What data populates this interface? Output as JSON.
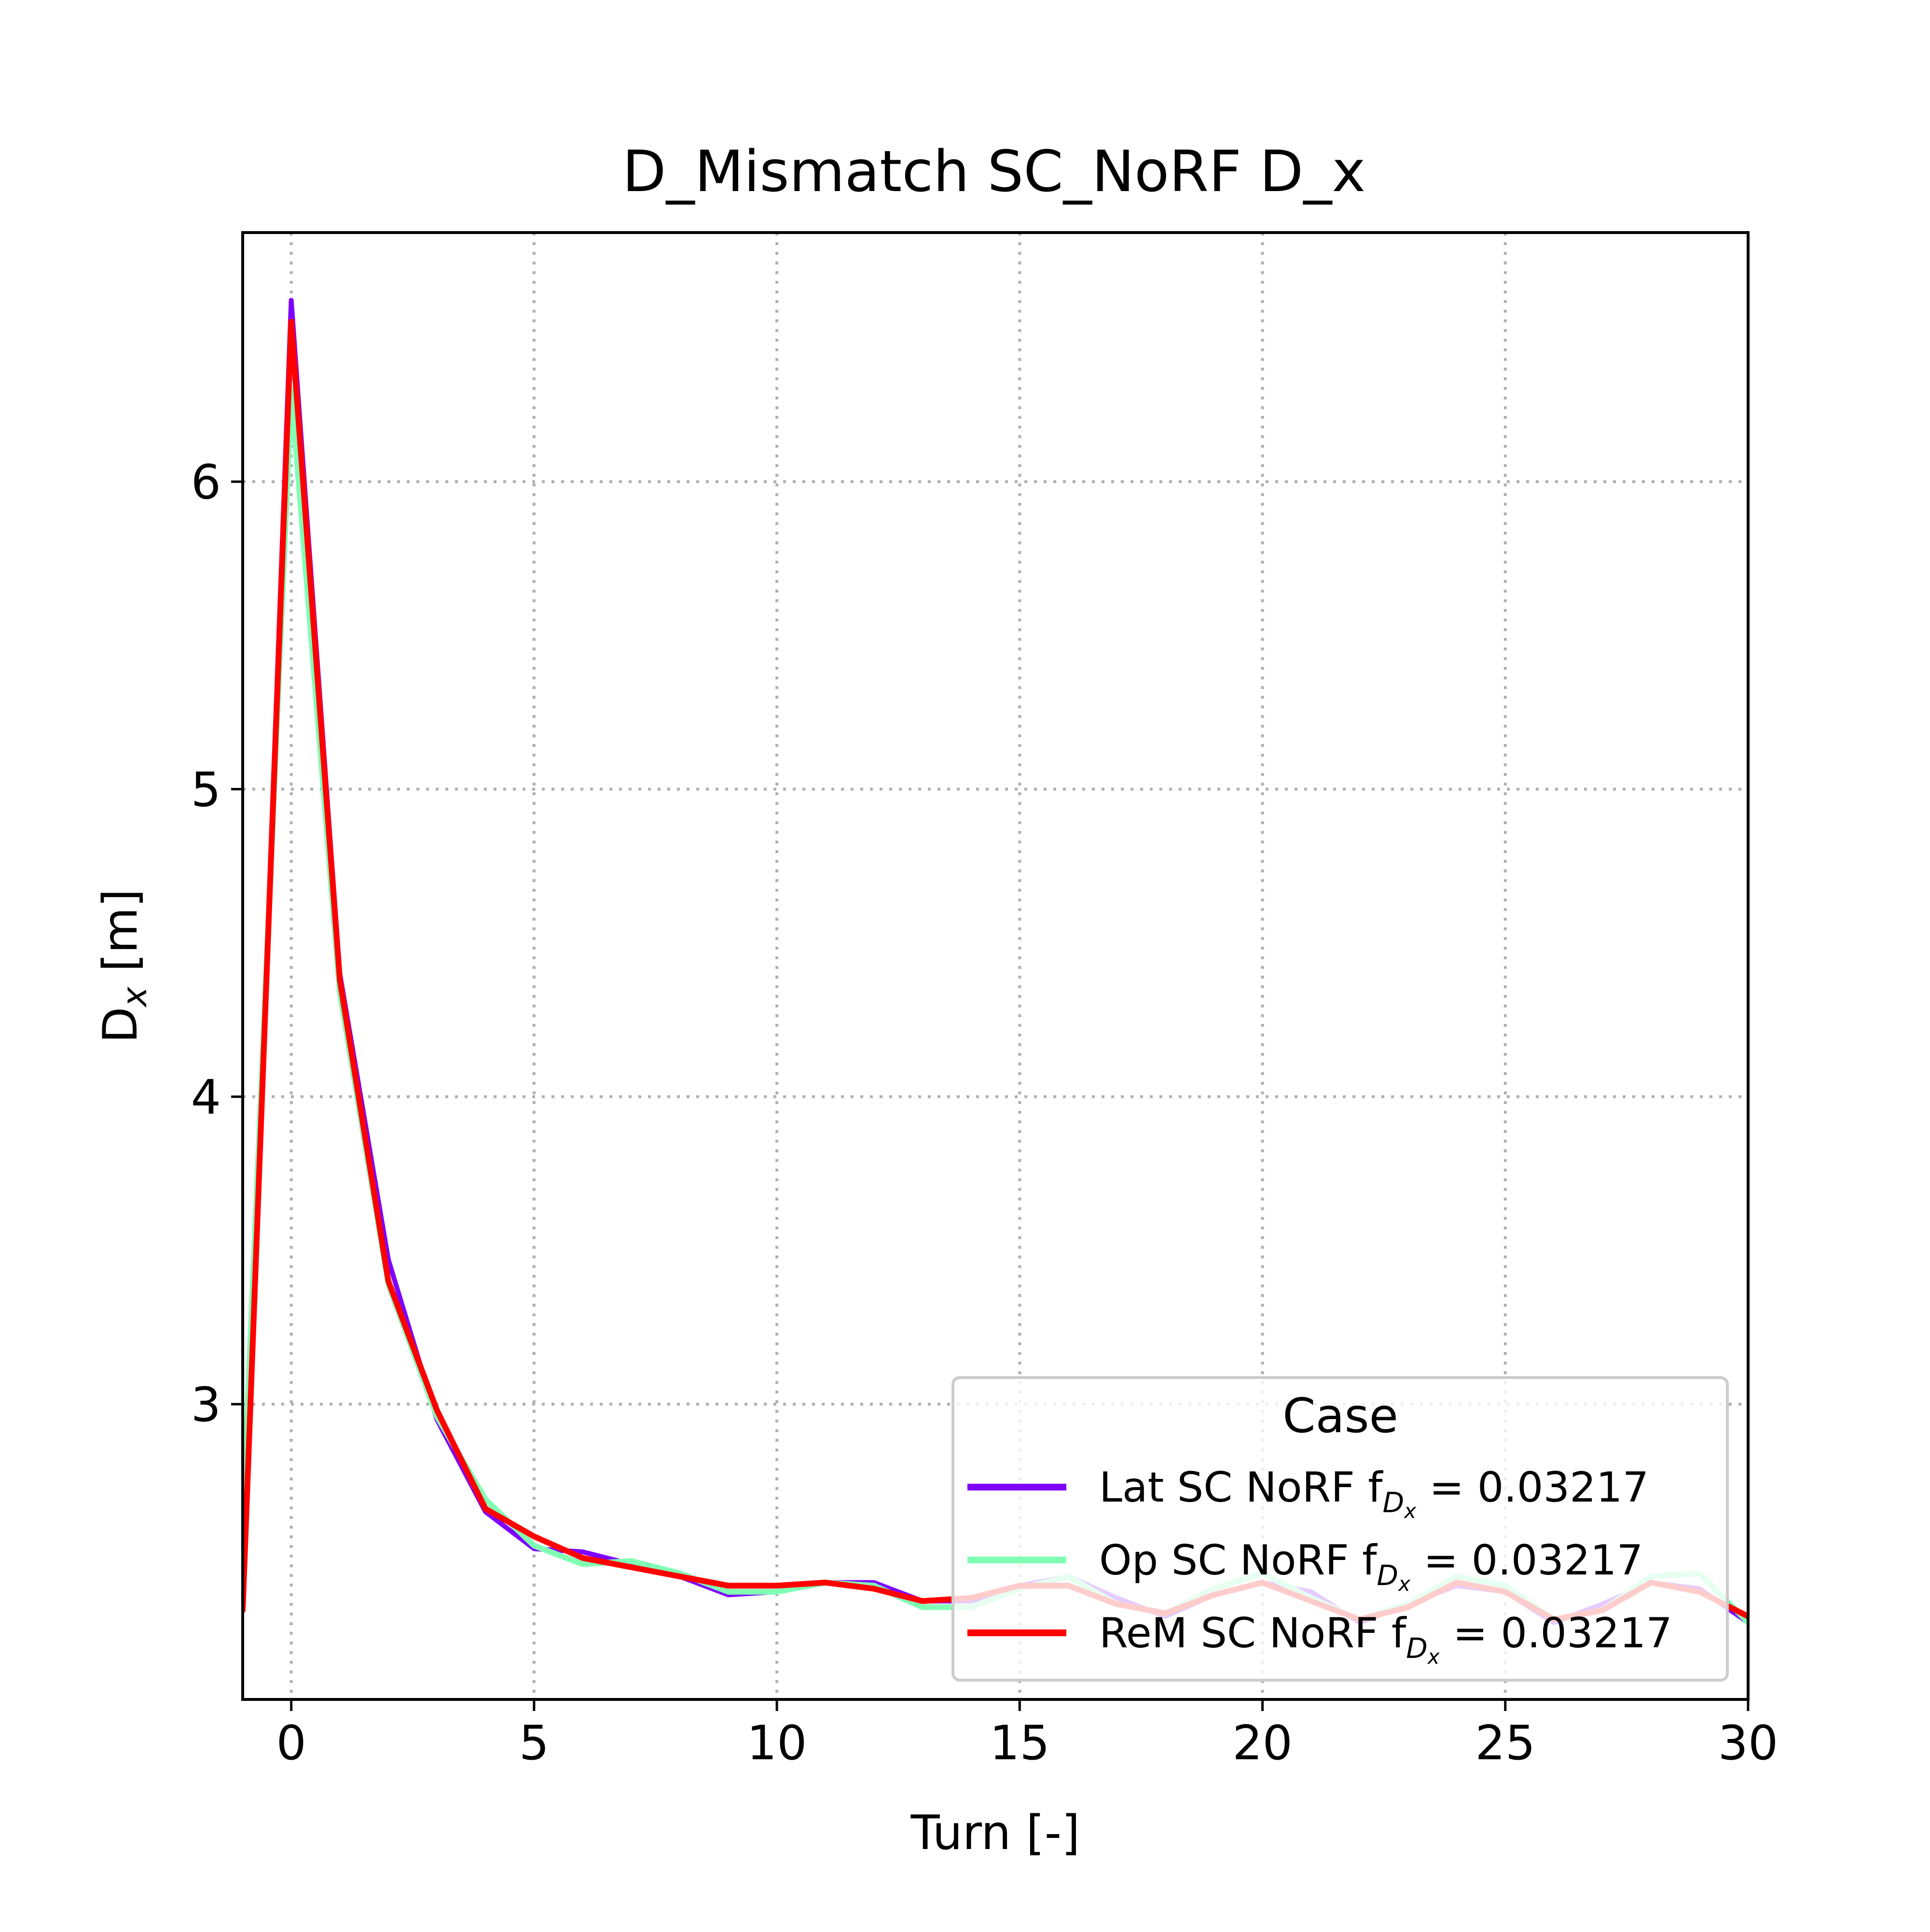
{
  "chart_data": {
    "type": "line",
    "title": "D_Mismatch SC_NoRF D_x",
    "xlabel": "Turn [-]",
    "ylabel": {
      "main": "D",
      "sub": "x",
      "unit": " [m]"
    },
    "xlim": [
      -1,
      30
    ],
    "ylim": [
      2.04,
      6.81
    ],
    "xticks": [
      0,
      5,
      10,
      15,
      20,
      25,
      30
    ],
    "yticks": [
      3,
      4,
      5,
      6
    ],
    "grid": true,
    "legend": {
      "title": "Case",
      "position": "lower-right"
    },
    "series": [
      {
        "name": "Lat SC NoRF",
        "label_f": "f",
        "label_sub": "D",
        "label_subsub": "x",
        "label_value": " = 0.03217",
        "color": "#7f00ff",
        "x": [
          -1,
          0,
          1,
          2,
          3,
          4,
          5,
          6,
          7,
          8,
          9,
          10,
          11,
          12,
          13,
          14,
          15,
          16,
          17,
          18,
          19,
          20,
          21,
          22,
          23,
          24,
          25,
          26,
          27,
          28,
          29,
          30
        ],
        "y": [
          2.33,
          6.59,
          4.4,
          3.47,
          2.95,
          2.65,
          2.53,
          2.52,
          2.48,
          2.44,
          2.38,
          2.39,
          2.42,
          2.42,
          2.36,
          2.36,
          2.41,
          2.44,
          2.37,
          2.31,
          2.38,
          2.42,
          2.39,
          2.29,
          2.35,
          2.41,
          2.39,
          2.29,
          2.35,
          2.42,
          2.4,
          2.29
        ]
      },
      {
        "name": "Op SC NoRF",
        "label_f": "f",
        "label_sub": "D",
        "label_subsub": "x",
        "label_value": " = 0.03217",
        "color": "#80ffb4",
        "x": [
          -1,
          0,
          1,
          2,
          3,
          4,
          5,
          6,
          7,
          8,
          9,
          10,
          11,
          12,
          13,
          14,
          15,
          16,
          17,
          18,
          19,
          20,
          21,
          22,
          23,
          24,
          25,
          26,
          27,
          28,
          29,
          30
        ],
        "y": [
          2.62,
          6.3,
          4.34,
          3.39,
          2.96,
          2.69,
          2.54,
          2.48,
          2.49,
          2.45,
          2.39,
          2.39,
          2.42,
          2.41,
          2.34,
          2.34,
          2.4,
          2.44,
          2.35,
          2.32,
          2.4,
          2.45,
          2.37,
          2.3,
          2.35,
          2.44,
          2.41,
          2.3,
          2.33,
          2.44,
          2.45,
          2.29
        ]
      },
      {
        "name": "ReM SC NoRF",
        "label_f": "f",
        "label_sub": "D",
        "label_subsub": "x",
        "label_value": " = 0.03217",
        "color": "#ff0000",
        "x": [
          -1,
          0,
          1,
          2,
          3,
          4,
          5,
          6,
          7,
          8,
          9,
          10,
          11,
          12,
          13,
          14,
          15,
          16,
          17,
          18,
          19,
          20,
          21,
          22,
          23,
          24,
          25,
          26,
          27,
          28,
          29,
          30
        ],
        "y": [
          2.33,
          6.52,
          4.38,
          3.4,
          2.98,
          2.66,
          2.57,
          2.5,
          2.47,
          2.44,
          2.41,
          2.41,
          2.42,
          2.4,
          2.36,
          2.37,
          2.41,
          2.41,
          2.35,
          2.32,
          2.38,
          2.42,
          2.36,
          2.3,
          2.34,
          2.42,
          2.39,
          2.3,
          2.33,
          2.42,
          2.39,
          2.31
        ]
      }
    ]
  }
}
